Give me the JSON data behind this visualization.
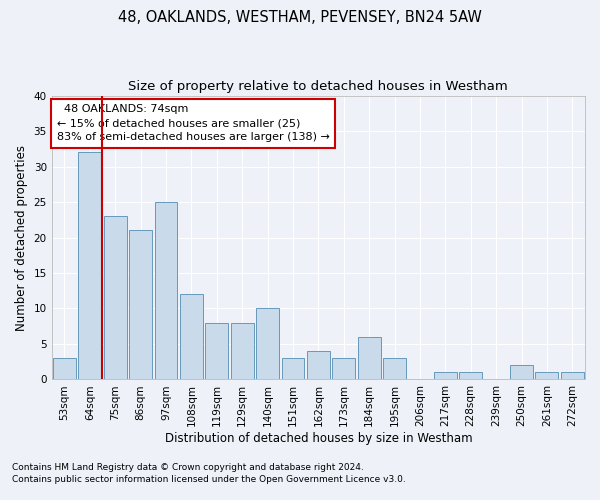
{
  "title1": "48, OAKLANDS, WESTHAM, PEVENSEY, BN24 5AW",
  "title2": "Size of property relative to detached houses in Westham",
  "xlabel": "Distribution of detached houses by size in Westham",
  "ylabel": "Number of detached properties",
  "footnote1": "Contains HM Land Registry data © Crown copyright and database right 2024.",
  "footnote2": "Contains public sector information licensed under the Open Government Licence v3.0.",
  "categories": [
    "53sqm",
    "64sqm",
    "75sqm",
    "86sqm",
    "97sqm",
    "108sqm",
    "119sqm",
    "129sqm",
    "140sqm",
    "151sqm",
    "162sqm",
    "173sqm",
    "184sqm",
    "195sqm",
    "206sqm",
    "217sqm",
    "228sqm",
    "239sqm",
    "250sqm",
    "261sqm",
    "272sqm"
  ],
  "values": [
    3,
    32,
    23,
    21,
    25,
    12,
    8,
    8,
    10,
    3,
    4,
    3,
    6,
    3,
    0,
    1,
    1,
    0,
    2,
    1,
    1
  ],
  "bar_color": "#c9daea",
  "bar_edge_color": "#6699bb",
  "vline_color": "#cc0000",
  "vline_position": 1.5,
  "annotation_text": "  48 OAKLANDS: 74sqm\n← 15% of detached houses are smaller (25)\n83% of semi-detached houses are larger (138) →",
  "annotation_box_color": "#ffffff",
  "annotation_box_edge": "#cc0000",
  "ylim": [
    0,
    40
  ],
  "yticks": [
    0,
    5,
    10,
    15,
    20,
    25,
    30,
    35,
    40
  ],
  "bg_color": "#eef2f8",
  "grid_color": "#ffffff",
  "title1_fontsize": 10.5,
  "title2_fontsize": 9.5,
  "xlabel_fontsize": 8.5,
  "ylabel_fontsize": 8.5,
  "tick_fontsize": 7.5,
  "annotation_fontsize": 8.0,
  "footnote_fontsize": 6.5
}
